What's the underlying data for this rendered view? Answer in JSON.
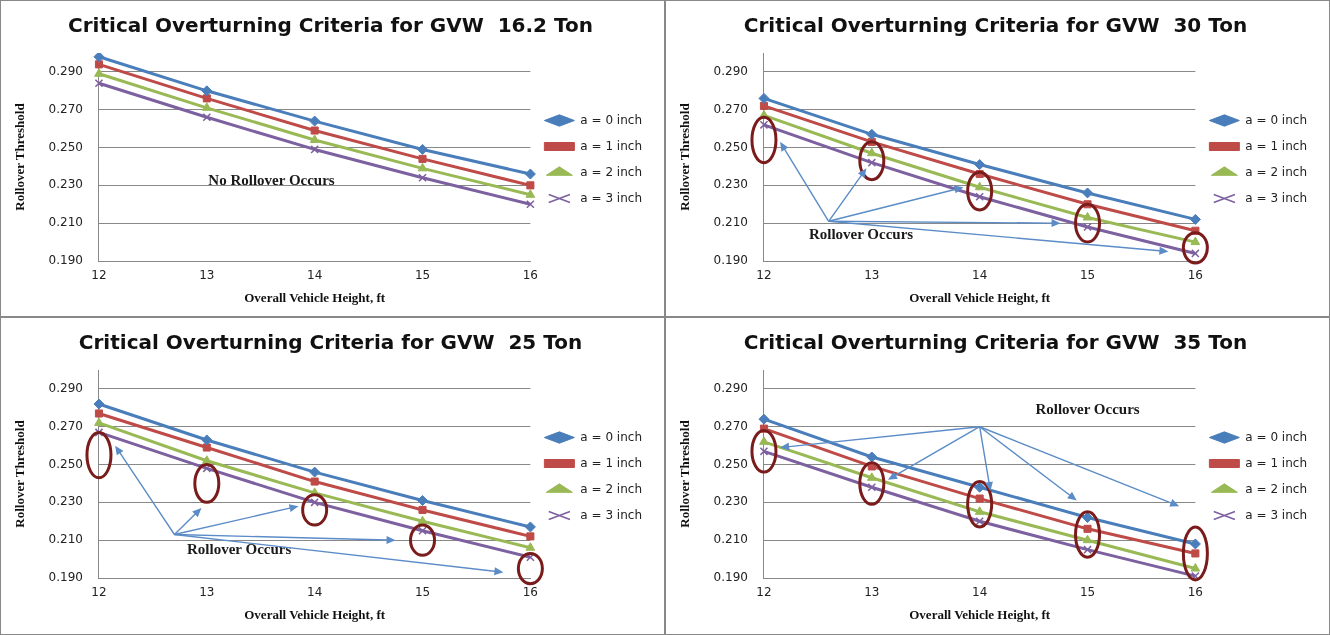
{
  "chart_data": [
    {
      "type": "line",
      "title": "Critical Overturning Criteria for GVW  16.2 Ton",
      "xlabel": "Overall Vehicle Height, ft",
      "ylabel": "Rollover Threshold",
      "categories": [
        "12",
        "13",
        "14",
        "15",
        "16"
      ],
      "series": [
        {
          "name": "a = 0 inch",
          "color": "#4a7ebb",
          "marker": "diamond",
          "values": [
            0.298,
            0.28,
            0.264,
            0.249,
            0.236
          ]
        },
        {
          "name": "a = 1 inch",
          "color": "#be4b48",
          "marker": "square",
          "values": [
            0.294,
            0.276,
            0.259,
            0.244,
            0.23
          ]
        },
        {
          "name": "a = 2 inch",
          "color": "#98b954",
          "marker": "triangle",
          "values": [
            0.289,
            0.271,
            0.254,
            0.239,
            0.225
          ]
        },
        {
          "name": "a = 3 inch",
          "color": "#7d60a0",
          "marker": "cross",
          "values": [
            0.284,
            0.266,
            0.249,
            0.234,
            0.22
          ]
        }
      ],
      "ylim": [
        0.19,
        0.3
      ],
      "yticks": [
        {
          "value": 0.19,
          "label": "0.190"
        },
        {
          "value": 0.21,
          "label": "0.210"
        },
        {
          "value": 0.23,
          "label": "0.230"
        },
        {
          "value": 0.25,
          "label": "0.250"
        },
        {
          "value": 0.27,
          "label": "0.270"
        },
        {
          "value": 0.29,
          "label": "0.290"
        }
      ],
      "grid": "y",
      "legend": "right",
      "annotations": [
        "No Rollover Occurs"
      ]
    },
    {
      "type": "line",
      "title": "Critical Overturning Criteria for GVW  30 Ton",
      "xlabel": "Overall Vehicle Height, ft",
      "ylabel": "Rollover Threshold",
      "categories": [
        "12",
        "13",
        "14",
        "15",
        "16"
      ],
      "series": [
        {
          "name": "a = 0 inch",
          "color": "#4a7ebb",
          "marker": "diamond",
          "values": [
            0.276,
            0.257,
            0.241,
            0.226,
            0.212
          ]
        },
        {
          "name": "a = 1 inch",
          "color": "#be4b48",
          "marker": "square",
          "values": [
            0.272,
            0.253,
            0.236,
            0.22,
            0.206
          ]
        },
        {
          "name": "a = 2 inch",
          "color": "#98b954",
          "marker": "triangle",
          "values": [
            0.267,
            0.247,
            0.229,
            0.213,
            0.2
          ]
        },
        {
          "name": "a = 3 inch",
          "color": "#7d60a0",
          "marker": "cross",
          "values": [
            0.262,
            0.242,
            0.224,
            0.208,
            0.194
          ]
        }
      ],
      "ylim": [
        0.19,
        0.3
      ],
      "yticks": [
        {
          "value": 0.19,
          "label": "0.190"
        },
        {
          "value": 0.21,
          "label": "0.210"
        },
        {
          "value": 0.23,
          "label": "0.230"
        },
        {
          "value": 0.25,
          "label": "0.250"
        },
        {
          "value": 0.27,
          "label": "0.270"
        },
        {
          "value": 0.29,
          "label": "0.290"
        }
      ],
      "grid": "y",
      "legend": "right",
      "annotations": [
        "Rollover Occurs"
      ]
    },
    {
      "type": "line",
      "title": "Critical Overturning Criteria for GVW  25 Ton",
      "xlabel": "Overall Vehicle Height, ft",
      "ylabel": "Rollover Threshold",
      "categories": [
        "12",
        "13",
        "14",
        "15",
        "16"
      ],
      "series": [
        {
          "name": "a = 0 inch",
          "color": "#4a7ebb",
          "marker": "diamond",
          "values": [
            0.282,
            0.263,
            0.246,
            0.231,
            0.217
          ]
        },
        {
          "name": "a = 1 inch",
          "color": "#be4b48",
          "marker": "square",
          "values": [
            0.277,
            0.259,
            0.241,
            0.226,
            0.212
          ]
        },
        {
          "name": "a = 2 inch",
          "color": "#98b954",
          "marker": "triangle",
          "values": [
            0.272,
            0.252,
            0.235,
            0.22,
            0.206
          ]
        },
        {
          "name": "a = 3 inch",
          "color": "#7d60a0",
          "marker": "cross",
          "values": [
            0.267,
            0.248,
            0.23,
            0.215,
            0.201
          ]
        }
      ],
      "ylim": [
        0.19,
        0.3
      ],
      "yticks": [
        {
          "value": 0.19,
          "label": "0.190"
        },
        {
          "value": 0.21,
          "label": "0.210"
        },
        {
          "value": 0.23,
          "label": "0.230"
        },
        {
          "value": 0.25,
          "label": "0.250"
        },
        {
          "value": 0.27,
          "label": "0.270"
        },
        {
          "value": 0.29,
          "label": "0.290"
        }
      ],
      "grid": "y",
      "legend": "right",
      "annotations": [
        "Rollover Occurs"
      ]
    },
    {
      "type": "line",
      "title": "Critical Overturning Criteria for GVW  35 Ton",
      "xlabel": "Overall Vehicle Height, ft",
      "ylabel": "Rollover Threshold",
      "categories": [
        "12",
        "13",
        "14",
        "15",
        "16"
      ],
      "series": [
        {
          "name": "a = 0 inch",
          "color": "#4a7ebb",
          "marker": "diamond",
          "values": [
            0.274,
            0.254,
            0.238,
            0.222,
            0.208
          ]
        },
        {
          "name": "a = 1 inch",
          "color": "#be4b48",
          "marker": "square",
          "values": [
            0.269,
            0.249,
            0.232,
            0.216,
            0.203
          ]
        },
        {
          "name": "a = 2 inch",
          "color": "#98b954",
          "marker": "triangle",
          "values": [
            0.262,
            0.243,
            0.225,
            0.21,
            0.195
          ]
        },
        {
          "name": "a = 3 inch",
          "color": "#7d60a0",
          "marker": "cross",
          "values": [
            0.257,
            0.238,
            0.22,
            0.205,
            0.191
          ]
        }
      ],
      "ylim": [
        0.19,
        0.3
      ],
      "yticks": [
        {
          "value": 0.19,
          "label": "0.190"
        },
        {
          "value": 0.21,
          "label": "0.210"
        },
        {
          "value": 0.23,
          "label": "0.230"
        },
        {
          "value": 0.25,
          "label": "0.250"
        },
        {
          "value": 0.27,
          "label": "0.270"
        },
        {
          "value": 0.29,
          "label": "0.290"
        }
      ],
      "grid": "y",
      "legend": "right",
      "annotations": [
        "Rollover Occurs"
      ]
    }
  ]
}
